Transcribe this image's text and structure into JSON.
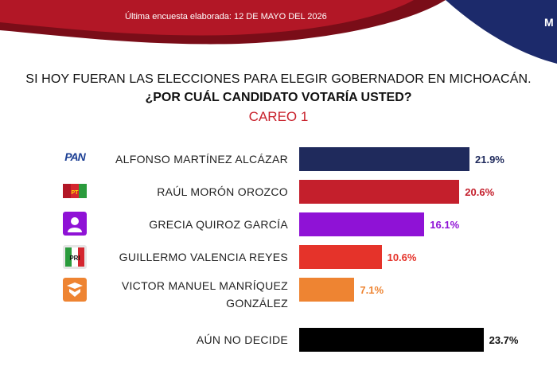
{
  "header": {
    "survey_date": "Última encuesta elaborada: 12 DE MAYO DEL 2026",
    "corner_brand": "M"
  },
  "question": {
    "line1": "SI HOY FUERAN LAS ELECCIONES PARA ELEGIR GOBERNADOR EN MICHOACÁN.",
    "line2": "¿POR CUÁL CANDIDATO VOTARÍA USTED?"
  },
  "subtitle": "CAREO 1",
  "colors": {
    "header_dark": "#7a0d18",
    "header_red": "#b21726",
    "header_navy": "#1c2a6b",
    "accent_red": "#c8202b"
  },
  "chart_data": {
    "type": "bar",
    "orientation": "horizontal",
    "title": "SI HOY FUERAN LAS ELECCIONES PARA ELEGIR GOBERNADOR EN MICHOACÁN. ¿POR CUÁL CANDIDATO VOTARÍA USTED?",
    "subtitle": "CAREO 1",
    "categories": [
      "ALFONSO MARTÍNEZ ALCÁZAR",
      "RAÚL MORÓN OROZCO",
      "GRECIA QUIROZ GARCÍA",
      "GUILLERMO VALENCIA REYES",
      "VICTOR MANUEL MANRÍQUEZ GONZÁLEZ",
      "AÚN NO DECIDE"
    ],
    "name_lines": [
      [
        "ALFONSO MARTÍNEZ ALCÁZAR"
      ],
      [
        "RAÚL MORÓN OROZCO"
      ],
      [
        "GRECIA QUIROZ GARCÍA"
      ],
      [
        "GUILLERMO VALENCIA REYES"
      ],
      [
        "VICTOR MANUEL MANRÍQUEZ",
        "GONZÁLEZ"
      ],
      [
        "AÚN NO DECIDE"
      ]
    ],
    "values": [
      21.9,
      20.6,
      16.1,
      10.6,
      7.1,
      23.7
    ],
    "value_labels": [
      "21.9%",
      "20.6%",
      "16.1%",
      "10.6%",
      "7.1%",
      "23.7%"
    ],
    "colors": [
      "#1f2a5c",
      "#c41f2c",
      "#8f12d6",
      "#e5332a",
      "#ee8432",
      "#000000"
    ],
    "label_colors": [
      "#1f2a5c",
      "#c41f2c",
      "#8f12d6",
      "#e5332a",
      "#ee8432",
      "#111111"
    ],
    "parties": [
      "PAN",
      "PT-MORENA-PVEM",
      "INDEPENDIENTE",
      "PRI",
      "MC",
      ""
    ],
    "party_logo_text": [
      "PAN",
      "PT",
      "",
      "PRI",
      "",
      ""
    ],
    "unit": "%",
    "grid": false,
    "legend": "none"
  }
}
